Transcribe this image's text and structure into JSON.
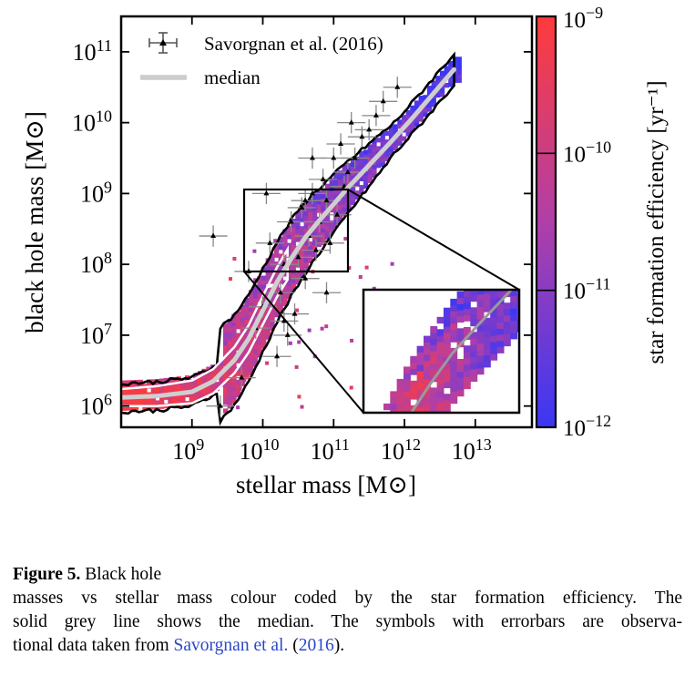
{
  "chart_data": {
    "type": "scatter",
    "title": "",
    "xlabel": "stellar mass [M⊙]",
    "ylabel": "black hole mass [M⊙]",
    "xscale": "log",
    "yscale": "log",
    "xlim_log10": [
      8.0,
      13.8
    ],
    "ylim_log10": [
      5.7,
      11.5
    ],
    "x_ticks": [
      {
        "exp": 9,
        "base": "10",
        "sup": "9"
      },
      {
        "exp": 10,
        "base": "10",
        "sup": "10"
      },
      {
        "exp": 11,
        "base": "10",
        "sup": "11"
      },
      {
        "exp": 12,
        "base": "10",
        "sup": "12"
      },
      {
        "exp": 13,
        "base": "10",
        "sup": "13"
      }
    ],
    "y_ticks": [
      {
        "exp": 6,
        "base": "10",
        "sup": "6"
      },
      {
        "exp": 7,
        "base": "10",
        "sup": "7"
      },
      {
        "exp": 8,
        "base": "10",
        "sup": "8"
      },
      {
        "exp": 9,
        "base": "10",
        "sup": "9"
      },
      {
        "exp": 10,
        "base": "10",
        "sup": "10"
      },
      {
        "exp": 11,
        "base": "10",
        "sup": "11"
      }
    ],
    "colorbar": {
      "label": "star formation efficiency [yr⁻¹]",
      "min_log10": -12,
      "max_log10": -9,
      "ticks": [
        {
          "exp": -9,
          "base": "10",
          "sup": "−9"
        },
        {
          "exp": -10,
          "base": "10",
          "sup": "−10"
        },
        {
          "exp": -11,
          "base": "10",
          "sup": "−11"
        },
        {
          "exp": -12,
          "base": "10",
          "sup": "−12"
        }
      ],
      "colors": {
        "low": "#3a37f5",
        "mid": "#b03fa8",
        "high": "#ff3b3b"
      }
    },
    "legend": {
      "position": "upper-left",
      "entries": [
        {
          "label": "Savorgnan et al. (2016)",
          "marker": "triangle-errorbar",
          "color": "#000000"
        },
        {
          "label": "median",
          "marker": "line",
          "color": "#cccccc"
        }
      ]
    },
    "median": {
      "name": "median",
      "color": "#cccccc",
      "x_log10": [
        8.0,
        8.5,
        9.0,
        9.3,
        9.6,
        9.8,
        10.0,
        10.2,
        10.4,
        10.6,
        10.8,
        11.0,
        11.2,
        11.5,
        11.8,
        12.1,
        12.4,
        12.7
      ],
      "y_log10": [
        6.12,
        6.14,
        6.2,
        6.35,
        6.65,
        6.95,
        7.35,
        7.75,
        8.08,
        8.38,
        8.62,
        8.85,
        9.08,
        9.4,
        9.72,
        10.05,
        10.4,
        10.75
      ]
    },
    "observations": {
      "name": "Savorgnan et al. (2016)",
      "x_log10": [
        9.4,
        9.7,
        9.9,
        10.0,
        10.1,
        10.2,
        10.25,
        10.3,
        10.35,
        10.4,
        10.45,
        10.5,
        10.55,
        10.6,
        10.65,
        10.7,
        10.75,
        10.8,
        10.85,
        10.9,
        10.95,
        11.0,
        11.05,
        11.1,
        11.15,
        11.2,
        11.3,
        11.4,
        11.5,
        11.6,
        11.7,
        11.9,
        10.6,
        10.3,
        9.8,
        9.3,
        10.9,
        10.05,
        11.25,
        10.7
      ],
      "y_log10": [
        6.0,
        6.4,
        7.1,
        7.4,
        8.3,
        6.7,
        7.6,
        8.0,
        7.0,
        8.6,
        7.3,
        8.1,
        8.8,
        7.8,
        8.4,
        9.0,
        8.2,
        8.6,
        9.2,
        8.9,
        8.3,
        9.5,
        8.7,
        9.7,
        9.1,
        9.3,
        9.5,
        9.8,
        9.9,
        10.1,
        10.3,
        10.5,
        8.9,
        7.2,
        7.9,
        8.4,
        7.6,
        9.0,
        10.0,
        9.5
      ],
      "xerr": 0.2,
      "yerr": 0.15
    },
    "inset": {
      "x_range_log10": [
        9.8,
        11.2
      ],
      "y_range_log10": [
        7.8,
        9.0
      ]
    }
  },
  "caption": {
    "label": "Figure 5.",
    "line1": "Black hole",
    "line2": "masses vs stellar mass colour coded by the star formation efficiency. The",
    "line3": "solid grey line shows the median. The symbols with errorbars are observa-",
    "line4_before": "tional data taken from",
    "line4_cite": "Savorgnan et al.",
    "line4_paren_open": "(",
    "line4_year": "2016",
    "line4_paren_close": ")."
  }
}
